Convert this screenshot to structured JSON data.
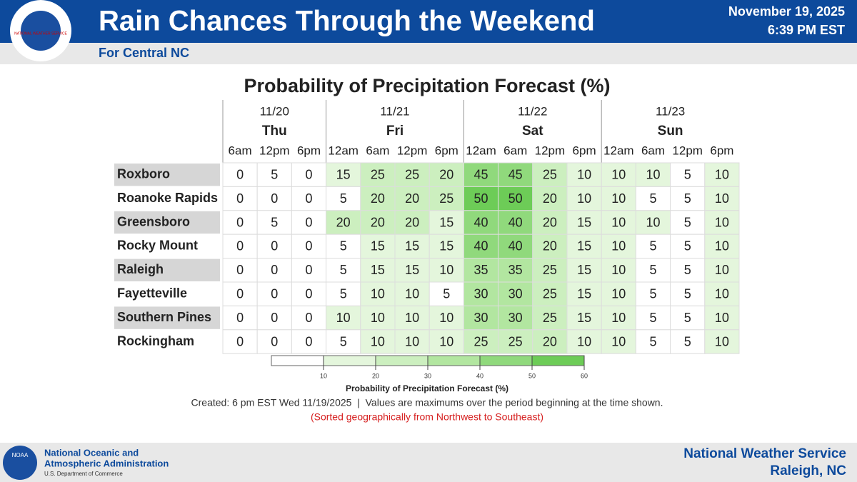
{
  "header": {
    "title": "Rain Chances Through the Weekend",
    "subtitle": "For Central NC",
    "date": "November 19, 2025",
    "time": "6:39 PM EST",
    "logo": "NATIONAL WEATHER SERVICE"
  },
  "table": {
    "title": "Probability of Precipitation Forecast (%)",
    "days": [
      {
        "date": "11/20",
        "day": "Thu",
        "times": [
          "6am",
          "12pm",
          "6pm"
        ]
      },
      {
        "date": "11/21",
        "day": "Fri",
        "times": [
          "12am",
          "6am",
          "12pm",
          "6pm"
        ]
      },
      {
        "date": "11/22",
        "day": "Sat",
        "times": [
          "12am",
          "6am",
          "12pm",
          "6pm"
        ]
      },
      {
        "date": "11/23",
        "day": "Sun",
        "times": [
          "12am",
          "6am",
          "12pm",
          "6pm"
        ]
      }
    ],
    "rows": [
      {
        "name": "Roxboro",
        "values": [
          0,
          5,
          0,
          15,
          25,
          25,
          20,
          45,
          45,
          25,
          10,
          10,
          10,
          5,
          10
        ]
      },
      {
        "name": "Roanoke Rapids",
        "values": [
          0,
          0,
          0,
          5,
          20,
          20,
          25,
          50,
          50,
          20,
          10,
          10,
          5,
          5,
          10
        ]
      },
      {
        "name": "Greensboro",
        "values": [
          0,
          5,
          0,
          20,
          20,
          20,
          15,
          40,
          40,
          20,
          15,
          10,
          10,
          5,
          10
        ]
      },
      {
        "name": "Rocky Mount",
        "values": [
          0,
          0,
          0,
          5,
          15,
          15,
          15,
          40,
          40,
          20,
          15,
          10,
          5,
          5,
          10
        ]
      },
      {
        "name": "Raleigh",
        "values": [
          0,
          0,
          0,
          5,
          15,
          15,
          10,
          35,
          35,
          25,
          15,
          10,
          5,
          5,
          10
        ]
      },
      {
        "name": "Fayetteville",
        "values": [
          0,
          0,
          0,
          5,
          10,
          10,
          5,
          30,
          30,
          25,
          15,
          10,
          5,
          5,
          10
        ]
      },
      {
        "name": "Southern Pines",
        "values": [
          0,
          0,
          0,
          10,
          10,
          10,
          10,
          30,
          30,
          25,
          15,
          10,
          5,
          5,
          10
        ]
      },
      {
        "name": "Rockingham",
        "values": [
          0,
          0,
          0,
          5,
          10,
          10,
          10,
          25,
          25,
          20,
          10,
          10,
          5,
          5,
          10
        ]
      }
    ]
  },
  "legend": {
    "label": "Probability of Precipitation Forecast (%)",
    "ticks": [
      10,
      20,
      30,
      40,
      50,
      60
    ],
    "colors": [
      "#ffffff",
      "#e4f6dc",
      "#ccefbf",
      "#b2e6a0",
      "#90d97c",
      "#6dcc57"
    ]
  },
  "notes": {
    "created": "Created: 6 pm EST Wed 11/19/2025  |  Values are maximums over the period beginning at the time shown.",
    "sorted": "(Sorted geographically from Northwest to Southeast)"
  },
  "footer": {
    "noaa_logo": "NOAA",
    "agency1": "National Oceanic and",
    "agency2": "Atmospheric Administration",
    "dept": "U.S. Department of Commerce",
    "office1": "National Weather Service",
    "office2": "Raleigh, NC"
  }
}
